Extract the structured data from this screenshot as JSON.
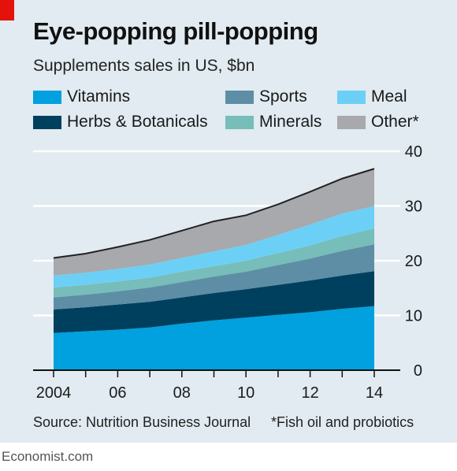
{
  "colors": {
    "Vitamins": "#00a1de",
    "Herbs & Botanicals": "#00405f",
    "Sports": "#5e8ea5",
    "Minerals": "#77bdb9",
    "Meal": "#6cd0f6",
    "Other*": "#a7a9ac"
  },
  "source": "Source: Nutrition Business Journal",
  "footnote": "*Fish oil and probiotics",
  "brand": "Economist.com",
  "chart_data": {
    "type": "area",
    "stacked": true,
    "title": "Eye-popping pill-popping",
    "subtitle": "Supplements sales in US, $bn",
    "xlabel": "",
    "ylabel": "",
    "x": [
      2004,
      2005,
      2006,
      2007,
      2008,
      2009,
      2010,
      2011,
      2012,
      2013,
      2014
    ],
    "x_tick_values": [
      2004,
      2006,
      2008,
      2010,
      2012,
      2014
    ],
    "x_tick_labels": [
      "2004",
      "06",
      "08",
      "10",
      "12",
      "14"
    ],
    "ylim": [
      0,
      40
    ],
    "y_ticks": [
      0,
      10,
      20,
      30,
      40
    ],
    "y_axis_side": "right",
    "grid": true,
    "legend_position": "top",
    "series": [
      {
        "name": "Vitamins",
        "values": [
          6.8,
          7.1,
          7.4,
          7.8,
          8.5,
          9.1,
          9.6,
          10.1,
          10.6,
          11.2,
          11.7
        ]
      },
      {
        "name": "Herbs & Botanicals",
        "values": [
          4.3,
          4.4,
          4.6,
          4.7,
          4.8,
          5.0,
          5.2,
          5.5,
          5.8,
          6.1,
          6.4
        ]
      },
      {
        "name": "Sports",
        "values": [
          2.2,
          2.3,
          2.4,
          2.6,
          2.8,
          3.0,
          3.2,
          3.6,
          4.0,
          4.5,
          4.9
        ]
      },
      {
        "name": "Minerals",
        "values": [
          1.8,
          1.8,
          1.8,
          1.8,
          1.9,
          1.9,
          2.0,
          2.2,
          2.4,
          2.7,
          2.9
        ]
      },
      {
        "name": "Meal",
        "values": [
          2.2,
          2.2,
          2.3,
          2.4,
          2.5,
          2.7,
          2.9,
          3.3,
          3.8,
          4.1,
          4.1
        ]
      },
      {
        "name": "Other*",
        "values": [
          3.2,
          3.5,
          4.0,
          4.5,
          5.0,
          5.5,
          5.4,
          5.6,
          6.0,
          6.4,
          6.8
        ]
      }
    ]
  }
}
